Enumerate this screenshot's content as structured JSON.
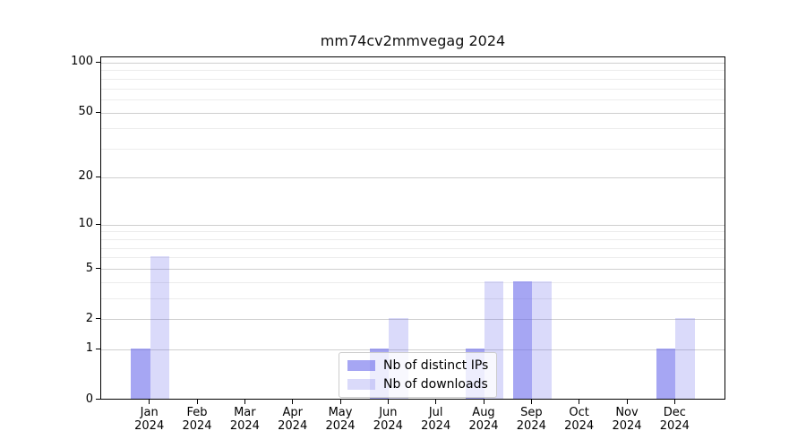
{
  "title": "mm74cv2mmvegag 2024",
  "chart_data": {
    "type": "bar",
    "title": "mm74cv2mmvegag 2024",
    "categories": [
      "Jan",
      "Feb",
      "Mar",
      "Apr",
      "May",
      "Jun",
      "Jul",
      "Aug",
      "Sep",
      "Oct",
      "Nov",
      "Dec"
    ],
    "x_sublabel": "2024",
    "series": [
      {
        "name": "Nb of distinct IPs",
        "color": "rgba(102,102,235,0.58)",
        "values": [
          1,
          0,
          0,
          0,
          0,
          1,
          0,
          1,
          4,
          0,
          0,
          1
        ]
      },
      {
        "name": "Nb of downloads",
        "color": "rgba(102,102,235,0.24)",
        "values": [
          6,
          0,
          0,
          0,
          0,
          2,
          0,
          4,
          4,
          0,
          0,
          2
        ]
      }
    ],
    "scale": "log10(1+y)",
    "ylim": [
      0,
      109
    ],
    "y_major_ticks": [
      0,
      1,
      2,
      5,
      10,
      20,
      50,
      100
    ],
    "y_minor_gridlines": [
      3,
      4,
      6,
      7,
      8,
      9,
      30,
      40,
      60,
      70,
      80,
      90
    ],
    "grid": true,
    "legend_position": "lower center"
  },
  "colors": {
    "grid_major": "#cfcfcf",
    "grid_minor": "#ececec",
    "axis": "#000000",
    "background": "#ffffff",
    "text": "#000000",
    "bar_ips": "rgba(102,102,235,0.58)",
    "bar_downloads": "rgba(102,102,235,0.24)"
  }
}
